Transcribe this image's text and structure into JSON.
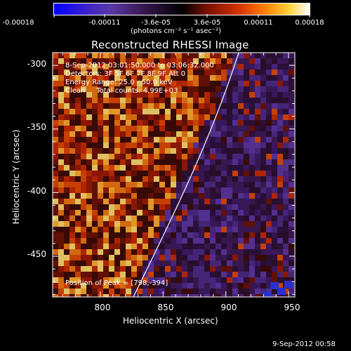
{
  "colorbar": {
    "ticks": [
      "-0.00018",
      "-0.00011",
      "-3.6e-05",
      "3.6e-05",
      "0.00011",
      "0.00018"
    ],
    "units": "(photons cm⁻² s⁻¹ asec⁻²)"
  },
  "title": "Reconstructed RHESSI Image",
  "info": {
    "time_range": "8-Sep-2012 03:01:50.000 to 03:06:32.000",
    "detectors": "Detectors: 3F 5F 6F 7F 8F 9F Att 0",
    "energy": "Energy Range: 25.0 - 50.0 keV",
    "method": "Clean     Total counts: 4.99E+03",
    "peak": "Position of Peak = [798,-394]"
  },
  "x_axis": {
    "title": "Heliocentric X (arcsec)",
    "ticks": [
      "800",
      "850",
      "900",
      "950"
    ],
    "range": [
      762,
      955
    ]
  },
  "y_axis": {
    "title": "Heliocentric Y (arcsec)",
    "ticks": [
      "-300",
      "-350",
      "-400",
      "-450"
    ],
    "range": [
      -482,
      -290
    ]
  },
  "footer": {
    "timestamp": "9-Sep-2012 00:58"
  }
}
